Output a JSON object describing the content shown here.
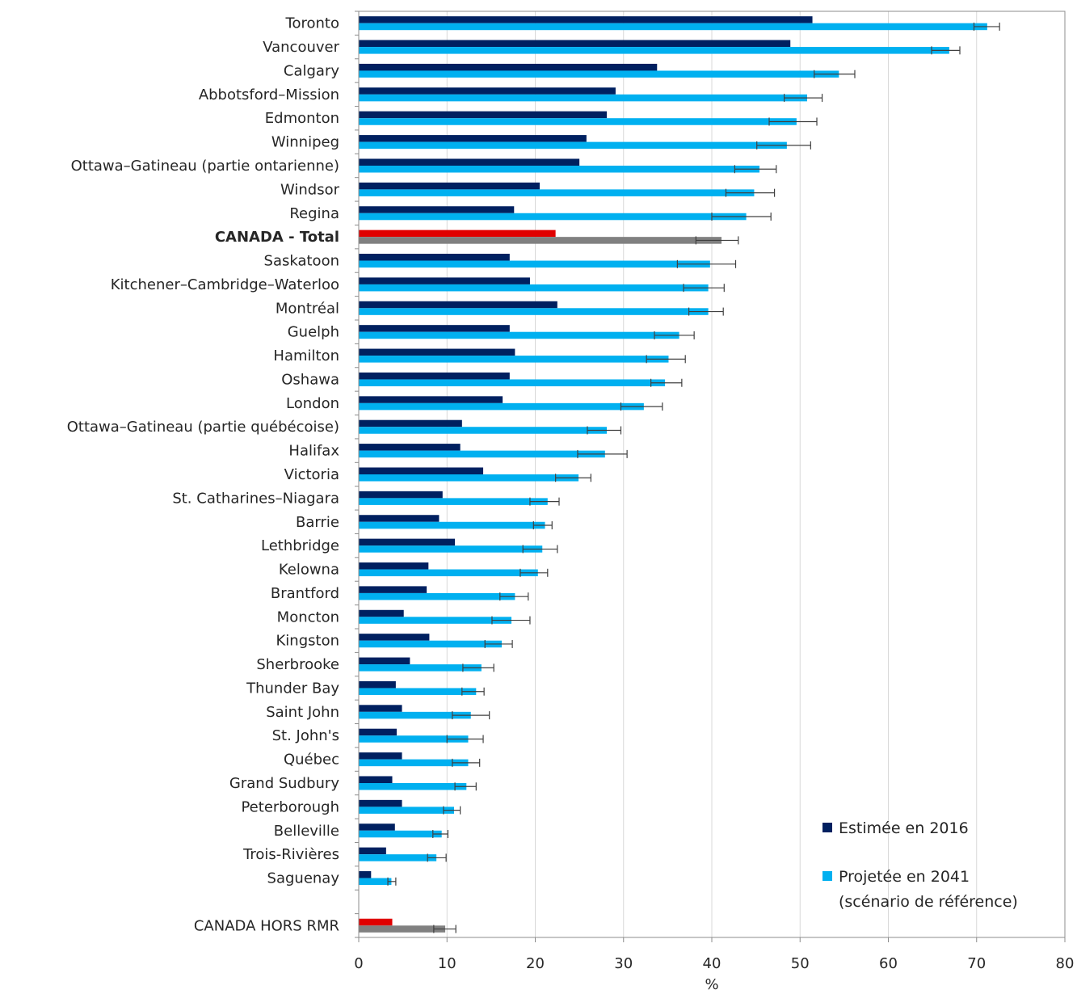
{
  "chart_data": {
    "type": "bar",
    "orientation": "horizontal",
    "xlabel": "%",
    "xlim": [
      0,
      80
    ],
    "xticks": [
      0,
      10,
      20,
      30,
      40,
      50,
      60,
      70,
      80
    ],
    "grid": "vertical",
    "legend_position": "bottom-right",
    "categories": [
      "Toronto",
      "Vancouver",
      "Calgary",
      "Abbotsford–Mission",
      "Edmonton",
      "Winnipeg",
      "Ottawa–Gatineau (partie ontarienne)",
      "Windsor",
      "Regina",
      "CANADA - Total",
      "Saskatoon",
      "Kitchener–Cambridge–Waterloo",
      "Montréal",
      "Guelph",
      "Hamilton",
      "Oshawa",
      "London",
      "Ottawa–Gatineau (partie québécoise)",
      "Halifax",
      "Victoria",
      "St. Catharines–Niagara",
      "Barrie",
      "Lethbridge",
      "Kelowna",
      "Brantford",
      "Moncton",
      "Kingston",
      "Sherbrooke",
      "Thunder Bay",
      "Saint John",
      "St. John's",
      "Québec",
      "Grand Sudbury",
      "Peterborough",
      "Belleville",
      "Trois-Rivières",
      "Saguenay",
      "",
      "CANADA HORS RMR"
    ],
    "highlight_categories": [
      "CANADA - Total",
      "CANADA HORS RMR"
    ],
    "bold_categories": [
      "CANADA - Total"
    ],
    "series": [
      {
        "name": "Estimée en 2016",
        "color": "#002060",
        "highlight_color": "#e00000",
        "values": [
          51.4,
          48.9,
          33.8,
          29.1,
          28.1,
          25.8,
          25.0,
          20.5,
          17.6,
          22.3,
          17.1,
          19.4,
          22.5,
          17.1,
          17.7,
          17.1,
          16.3,
          11.7,
          11.5,
          14.1,
          9.5,
          9.1,
          10.9,
          7.9,
          7.7,
          5.1,
          8.0,
          5.8,
          4.2,
          4.9,
          4.3,
          4.9,
          3.8,
          4.9,
          4.1,
          3.1,
          1.4,
          null,
          3.8
        ]
      },
      {
        "name": "Projetée en 2041",
        "legend_extra": "(scénario de référence)",
        "color": "#00b0f0",
        "highlight_color": "#808080",
        "values": [
          71.2,
          66.9,
          54.4,
          50.8,
          49.6,
          48.5,
          45.4,
          44.8,
          43.9,
          41.1,
          39.8,
          39.6,
          39.6,
          36.3,
          35.1,
          34.7,
          32.3,
          28.1,
          27.9,
          24.9,
          21.4,
          21.1,
          20.8,
          20.3,
          17.7,
          17.3,
          16.2,
          13.9,
          13.3,
          12.7,
          12.4,
          12.4,
          12.2,
          10.8,
          9.4,
          8.8,
          3.7,
          null,
          9.8
        ],
        "error_low": [
          69.7,
          64.9,
          51.6,
          48.2,
          46.5,
          45.1,
          42.6,
          41.6,
          40.0,
          38.2,
          36.1,
          36.8,
          37.4,
          33.5,
          32.6,
          33.1,
          29.7,
          25.9,
          24.8,
          22.3,
          19.4,
          19.8,
          18.6,
          18.3,
          16.0,
          15.1,
          14.3,
          11.8,
          11.7,
          10.6,
          10.0,
          10.6,
          10.9,
          9.6,
          8.4,
          7.8,
          3.3,
          null,
          8.5
        ],
        "error_high": [
          72.6,
          68.1,
          56.2,
          52.5,
          51.9,
          51.2,
          47.3,
          47.1,
          46.7,
          43.0,
          42.7,
          41.4,
          41.3,
          38.0,
          37.0,
          36.6,
          34.4,
          29.7,
          30.4,
          26.3,
          22.7,
          21.9,
          22.5,
          21.4,
          19.2,
          19.4,
          17.4,
          15.3,
          14.2,
          14.8,
          14.1,
          13.7,
          13.3,
          11.5,
          10.1,
          9.9,
          4.2,
          null,
          11.0
        ]
      }
    ]
  }
}
